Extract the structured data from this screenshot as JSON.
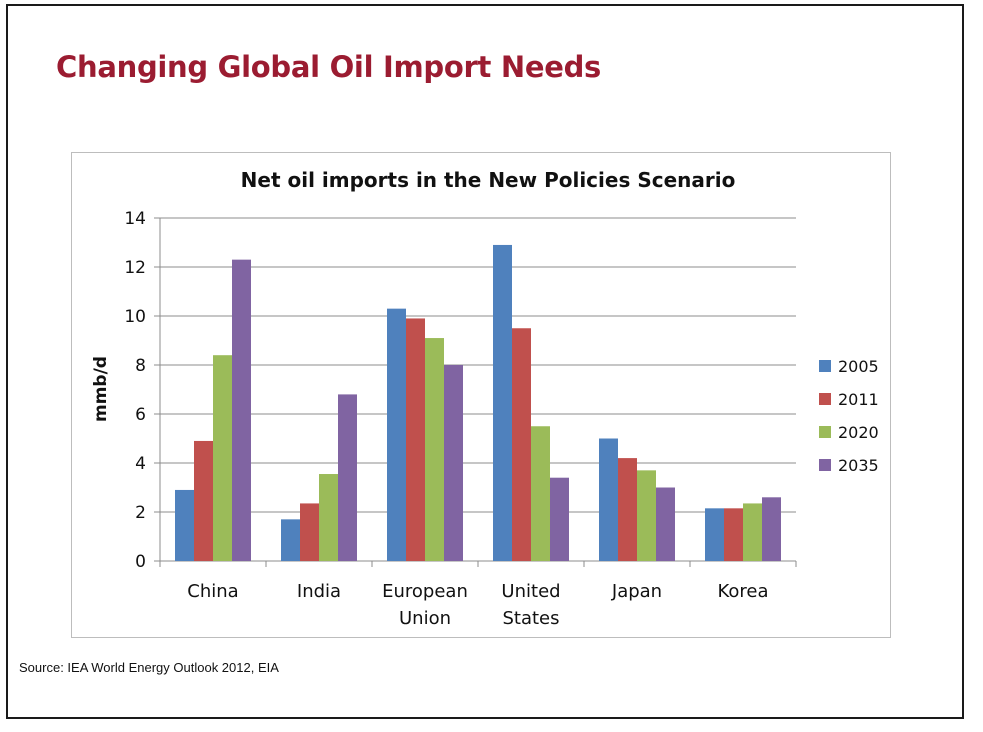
{
  "slide": {
    "title": "Changing Global Oil Import Needs",
    "source": "Source: IEA World Energy Outlook 2012, EIA"
  },
  "colors": {
    "title": "#9b1c31",
    "series": [
      "#4f81bd",
      "#c0504d",
      "#9bbb59",
      "#8064a2"
    ]
  },
  "chart_data": {
    "type": "bar",
    "title": "Net oil imports in the New Policies Scenario",
    "xlabel": "",
    "ylabel": "mmb/d",
    "ylim": [
      0,
      14
    ],
    "yticks": [
      0,
      2,
      4,
      6,
      8,
      10,
      12,
      14
    ],
    "grid": true,
    "legend_position": "right",
    "categories": [
      "China",
      "India",
      "European Union",
      "United States",
      "Japan",
      "Korea"
    ],
    "category_lines": [
      [
        "China"
      ],
      [
        "India"
      ],
      [
        "European",
        "Union"
      ],
      [
        "United",
        "States"
      ],
      [
        "Japan"
      ],
      [
        "Korea"
      ]
    ],
    "series": [
      {
        "name": "2005",
        "values": [
          2.9,
          1.7,
          10.3,
          12.9,
          5.0,
          2.15
        ]
      },
      {
        "name": "2011",
        "values": [
          4.9,
          2.35,
          9.9,
          9.5,
          4.2,
          2.15
        ]
      },
      {
        "name": "2020",
        "values": [
          8.4,
          3.55,
          9.1,
          5.5,
          3.7,
          2.35
        ]
      },
      {
        "name": "2035",
        "values": [
          12.3,
          6.8,
          8.0,
          3.4,
          3.0,
          2.6
        ]
      }
    ]
  }
}
